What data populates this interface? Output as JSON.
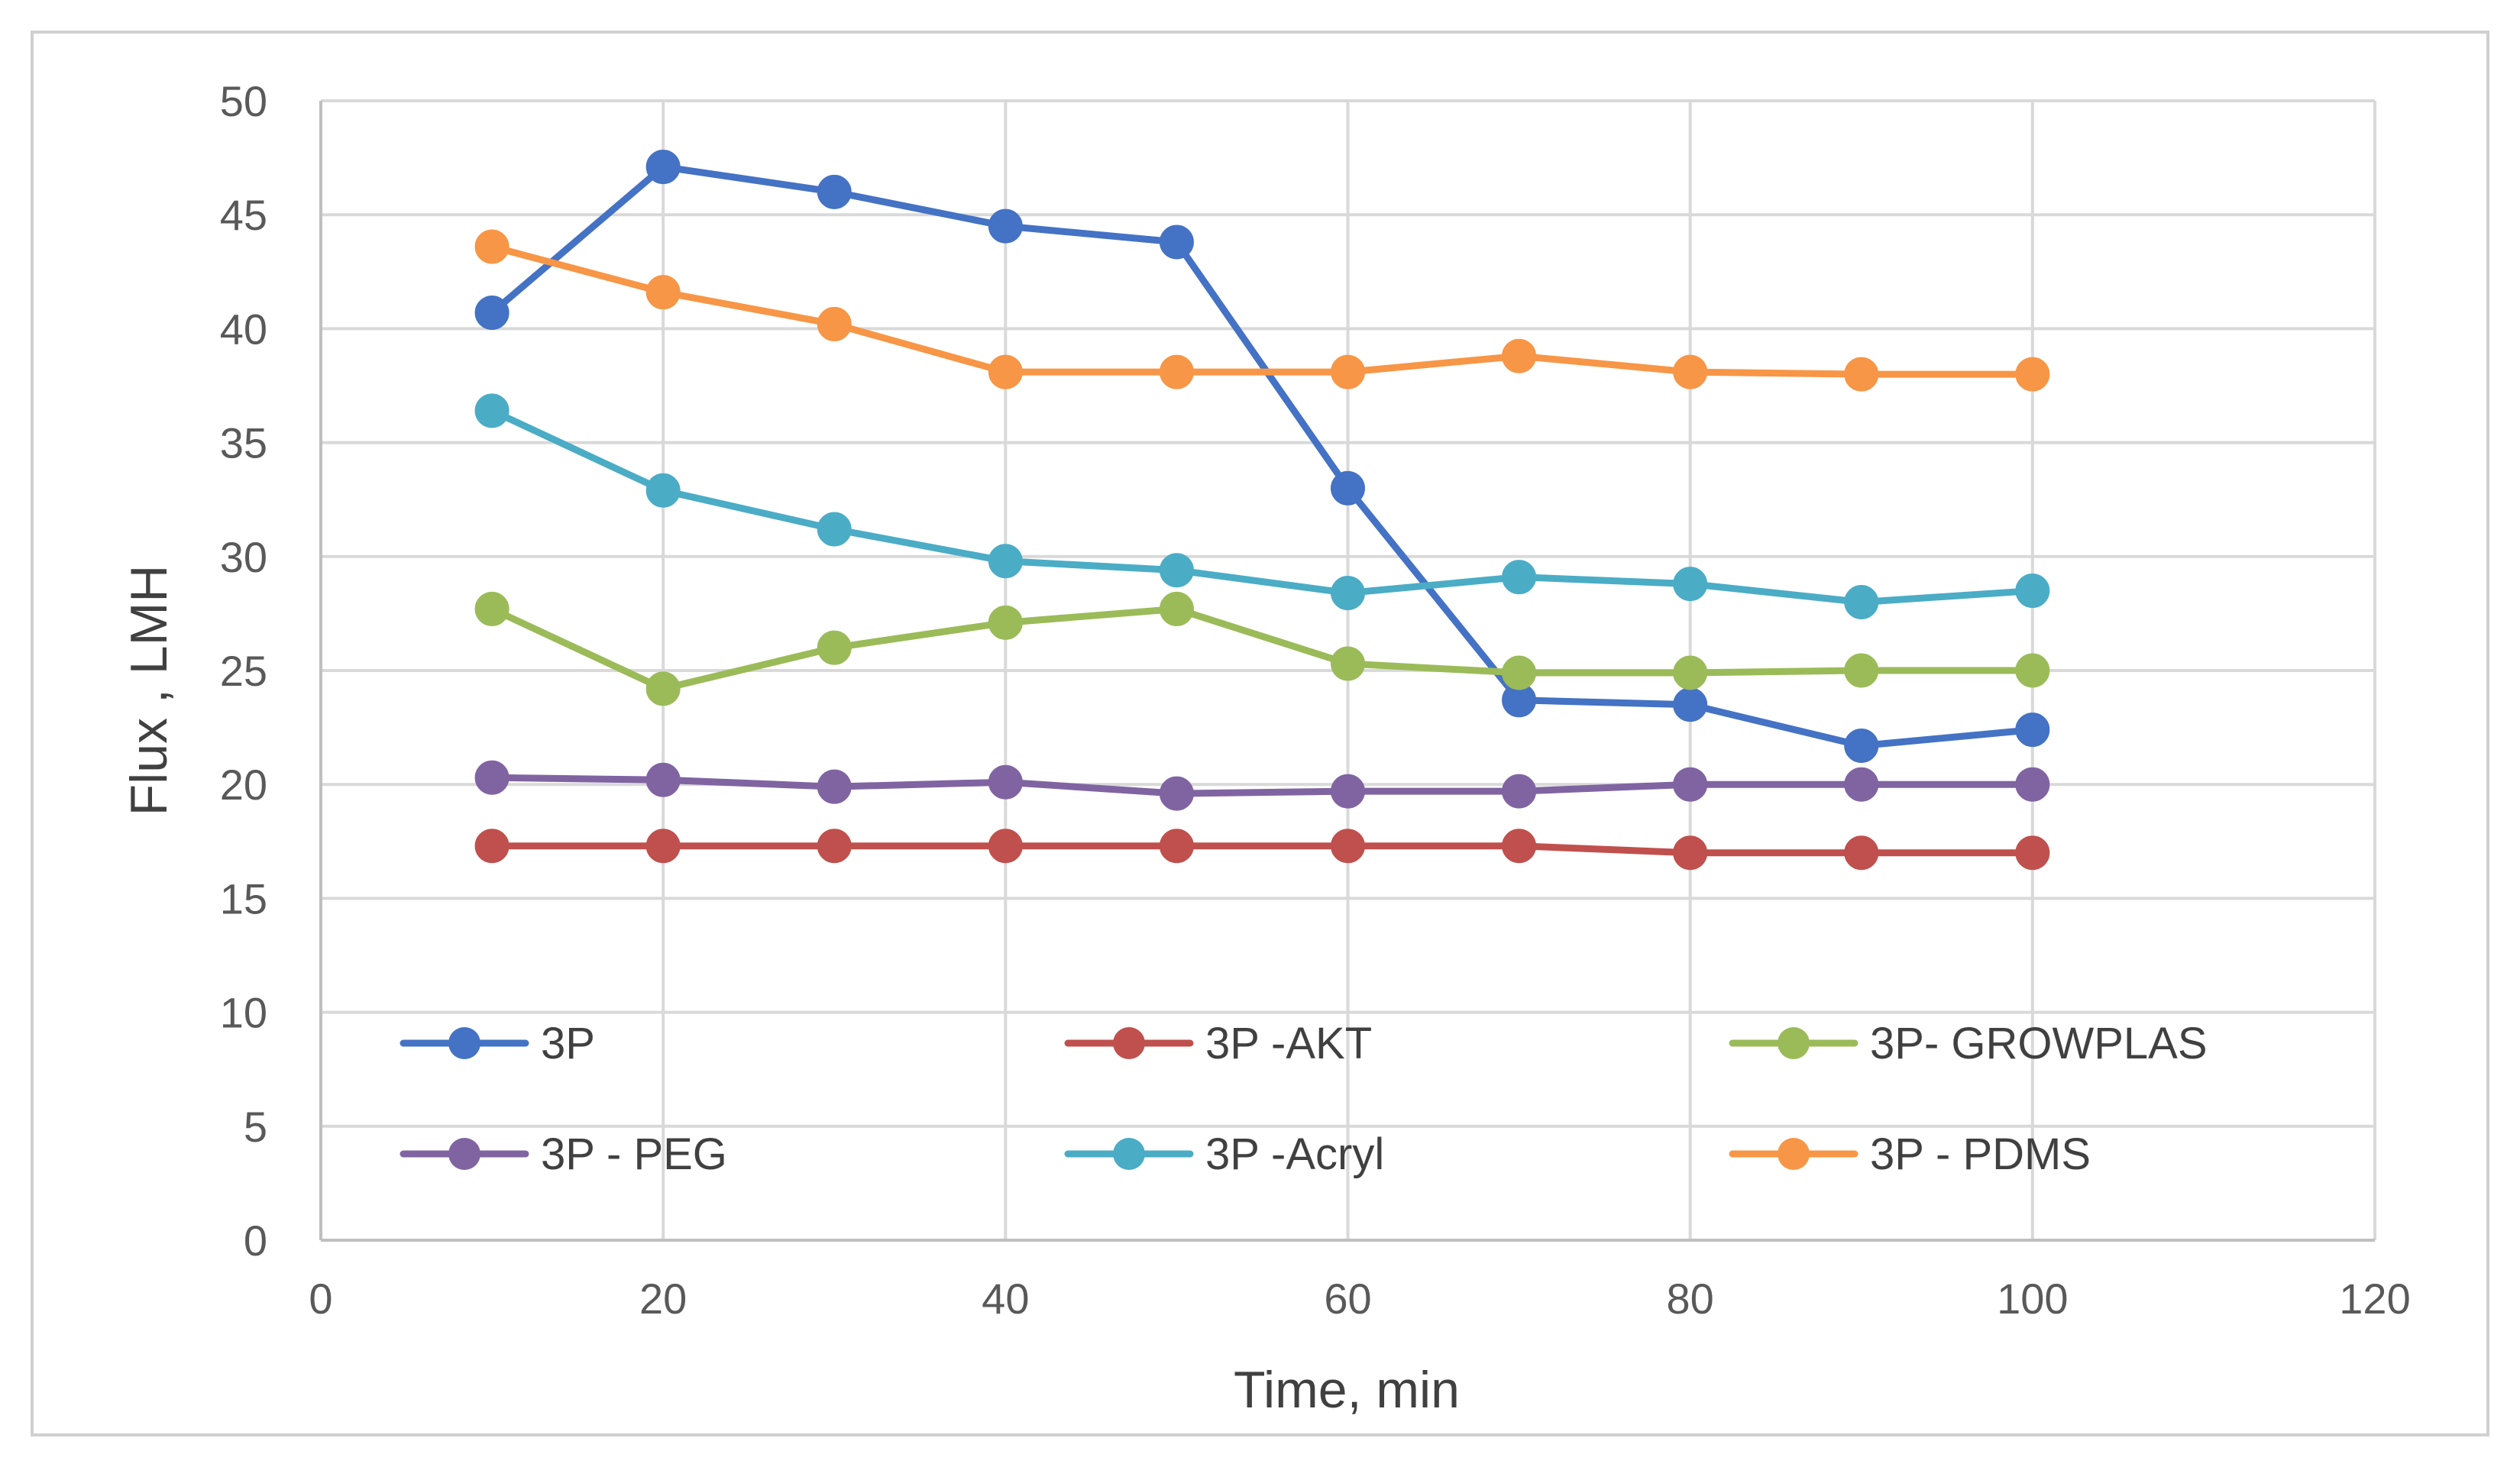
{
  "chart_data": {
    "type": "line",
    "title": "",
    "xlabel": "Time, min",
    "ylabel": "Flux , LMH",
    "xlim": [
      0,
      120
    ],
    "ylim": [
      0,
      50
    ],
    "x_ticks": [
      "0",
      "20",
      "40",
      "60",
      "80",
      "100",
      "120"
    ],
    "y_ticks": [
      "0",
      "5",
      "10",
      "15",
      "20",
      "25",
      "30",
      "35",
      "40",
      "45",
      "50"
    ],
    "grid": true,
    "legend_position": "bottom-inside",
    "x": [
      10,
      20,
      30,
      40,
      50,
      60,
      70,
      80,
      90,
      100
    ],
    "series": [
      {
        "name": "3P",
        "color": "#4472c4",
        "values": [
          40.7,
          47.1,
          46.0,
          44.5,
          43.8,
          33.0,
          23.7,
          23.5,
          21.7,
          22.4
        ]
      },
      {
        "name": "3P -AKT",
        "color": "#c0504d",
        "values": [
          17.3,
          17.3,
          17.3,
          17.3,
          17.3,
          17.3,
          17.3,
          17.0,
          17.0,
          17.0
        ]
      },
      {
        "name": "3P- GROWPLAS",
        "color": "#9bbb59",
        "values": [
          27.7,
          24.2,
          26.0,
          27.1,
          27.7,
          25.3,
          24.9,
          24.9,
          25.0,
          25.0
        ]
      },
      {
        "name": "3P - PEG",
        "color": "#8064a2",
        "values": [
          20.3,
          20.2,
          19.9,
          20.1,
          19.6,
          19.7,
          19.7,
          20.0,
          20.0,
          20.0
        ]
      },
      {
        "name": "3P -Acryl",
        "color": "#4bacc6",
        "values": [
          36.4,
          32.9,
          31.2,
          29.8,
          29.4,
          28.4,
          29.1,
          28.8,
          28.0,
          28.5
        ]
      },
      {
        "name": "3P - PDMS",
        "color": "#f79646",
        "values": [
          43.6,
          41.6,
          40.2,
          38.1,
          38.1,
          38.1,
          38.8,
          38.1,
          38.0,
          38.0
        ]
      }
    ]
  }
}
